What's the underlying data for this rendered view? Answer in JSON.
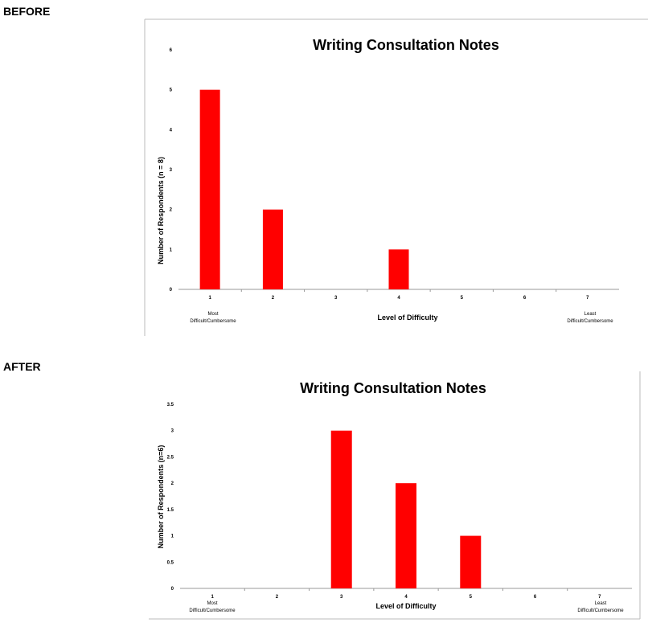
{
  "sections": {
    "before_label": "BEFORE",
    "after_label": "AFTER"
  },
  "colors": {
    "bar": "#ff0000",
    "frame": "#bbbbbb",
    "axis": "#999999"
  },
  "chart_data": [
    {
      "type": "bar",
      "title": "Writing Consultation Notes",
      "xlabel": "Level of Difficulty",
      "ylabel": "Number of Respondents (n = 8)",
      "categories": [
        "1",
        "2",
        "3",
        "4",
        "5",
        "6",
        "7"
      ],
      "values": [
        5,
        2,
        0,
        1,
        0,
        0,
        0
      ],
      "ylim": [
        0,
        6
      ],
      "yticks": [
        "0",
        "1",
        "2",
        "3",
        "4",
        "5",
        "6"
      ],
      "left_end_label": [
        "Most",
        "Difficult/Cumbersome"
      ],
      "right_end_label": [
        "Least",
        "Difficult/Cumbersome"
      ]
    },
    {
      "type": "bar",
      "title": "Writing Consultation Notes",
      "xlabel": "Level of Difficulty",
      "ylabel": "Number of Respondents (n=6)",
      "categories": [
        "1",
        "2",
        "3",
        "4",
        "5",
        "6",
        "7"
      ],
      "values": [
        0,
        0,
        3,
        2,
        1,
        0,
        0
      ],
      "ylim": [
        0,
        3.5
      ],
      "yticks": [
        "0",
        "0.5",
        "1",
        "1.5",
        "2",
        "2.5",
        "3",
        "3.5"
      ],
      "left_end_label": [
        "Most",
        "Difficult/Cumbersome"
      ],
      "right_end_label": [
        "Least",
        "Difficult/Cumbersome"
      ]
    }
  ]
}
